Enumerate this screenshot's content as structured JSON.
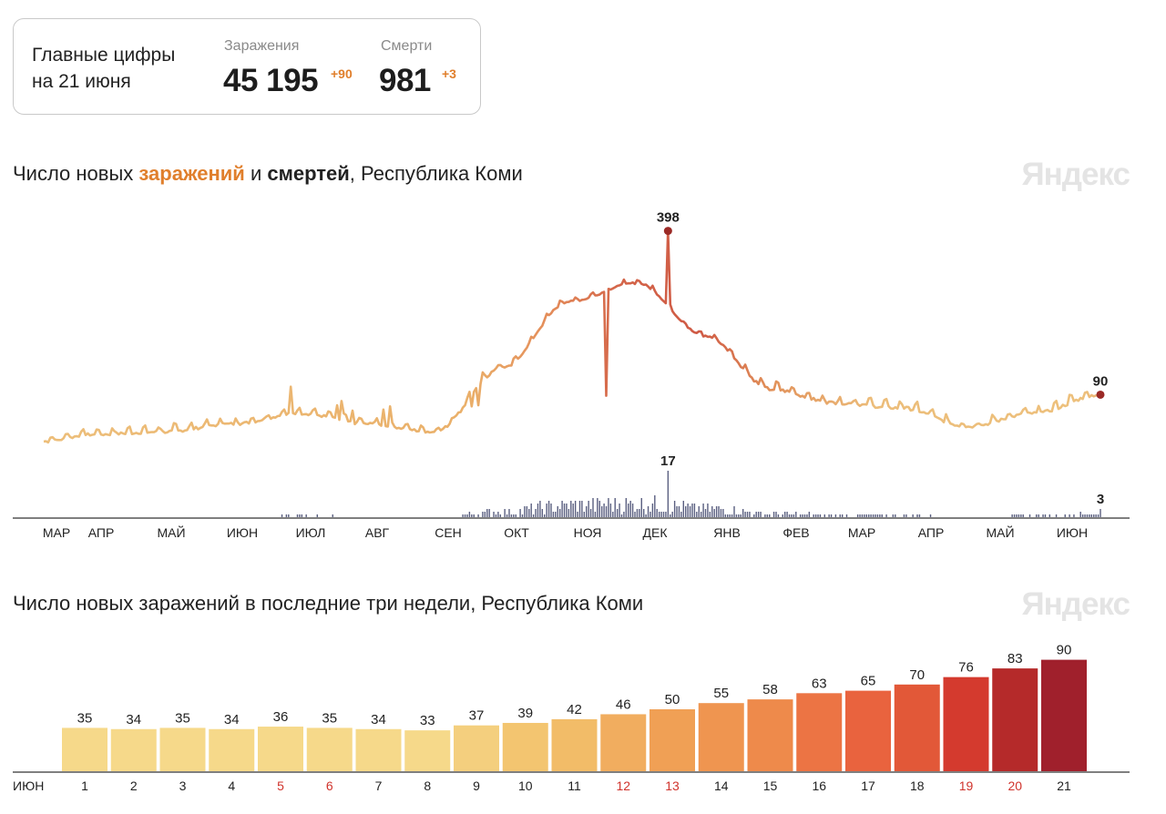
{
  "summary": {
    "title_line1": "Главные цифры",
    "title_line2": "на 21 июня",
    "infections": {
      "label": "Заражения",
      "value": "45 195",
      "delta": "+90",
      "delta_color": "#e07f2c"
    },
    "deaths": {
      "label": "Смерти",
      "value": "981",
      "delta": "+3",
      "delta_color": "#e07f2c"
    }
  },
  "chart1": {
    "title_prefix": "Число новых ",
    "title_infections": "заражений",
    "title_mid": " и ",
    "title_deaths": "смертей",
    "title_suffix": ", Республика Коми",
    "brand": "Яндекс"
  },
  "chart2": {
    "title": "Число новых заражений в последние три недели, Республика Коми",
    "brand": "Яндекс"
  },
  "chart_data": [
    {
      "type": "line",
      "title": "Число новых заражений и смертей, Республика Коми",
      "x_tick_labels": [
        "МАР",
        "АПР",
        "МАЙ",
        "ИЮН",
        "ИЮЛ",
        "АВГ",
        "СЕН",
        "ОКТ",
        "НОЯ",
        "ДЕК",
        "ЯНВ",
        "ФЕВ",
        "МАР",
        "АПР",
        "МАЙ",
        "ИЮН"
      ],
      "series": [
        {
          "kind": "line",
          "annotations": [
            {
              "label": "398",
              "value": 398,
              "x_month": "ДЕК"
            },
            {
              "label": "90",
              "value": 90,
              "x_month": "ИЮН"
            }
          ],
          "monthly_approx": [
            {
              "month": "МАР",
              "value": 2
            },
            {
              "month": "АПР",
              "value": 15
            },
            {
              "month": "МАЙ",
              "value": 20
            },
            {
              "month": "ИЮН",
              "value": 35
            },
            {
              "month": "ИЮЛ",
              "value": 55
            },
            {
              "month": "АВГ",
              "value": 35
            },
            {
              "month": "СЕН",
              "value": 20
            },
            {
              "month": "ОКТ",
              "value": 140
            },
            {
              "month": "НОЯ",
              "value": 265
            },
            {
              "month": "ДЕК",
              "value": 300
            },
            {
              "month": "ЯНВ",
              "value": 200
            },
            {
              "month": "ФЕВ",
              "value": 100
            },
            {
              "month": "МАР",
              "value": 75
            },
            {
              "month": "АПР",
              "value": 65
            },
            {
              "month": "МАЙ",
              "value": 30
            },
            {
              "month": "ИЮН",
              "value": 55
            }
          ]
        },
        {
          "kind": "bars",
          "annotations": [
            {
              "label": "17",
              "value": 17,
              "x_month": "ДЕК"
            },
            {
              "label": "3",
              "value": 3,
              "x_month": "ИЮН"
            }
          ]
        }
      ]
    },
    {
      "type": "bar",
      "title": "Число новых заражений в последние три недели, Республика Коми",
      "month_label": "ИЮН",
      "categories": [
        "1",
        "2",
        "3",
        "4",
        "5",
        "6",
        "7",
        "8",
        "9",
        "10",
        "11",
        "12",
        "13",
        "14",
        "15",
        "16",
        "17",
        "18",
        "19",
        "20",
        "21"
      ],
      "values": [
        35,
        34,
        35,
        34,
        36,
        35,
        34,
        33,
        37,
        39,
        42,
        46,
        50,
        55,
        58,
        63,
        65,
        70,
        76,
        83,
        90
      ],
      "weekend": [
        false,
        false,
        false,
        false,
        true,
        true,
        false,
        false,
        false,
        false,
        false,
        true,
        true,
        false,
        false,
        false,
        false,
        false,
        true,
        true,
        false
      ],
      "weekend_color": "#d0332c",
      "colors": [
        "#f6d98a",
        "#f6d98a",
        "#f6d98a",
        "#f6d98a",
        "#f6d98a",
        "#f6d98a",
        "#f6d98a",
        "#f6d98a",
        "#f4cf7e",
        "#f3c570",
        "#f2bc68",
        "#f1ad5f",
        "#f0a055",
        "#ef9550",
        "#ee8a4b",
        "#ec7444",
        "#e9633e",
        "#e25838",
        "#d43a2e",
        "#b52a2a",
        "#a0202c"
      ]
    }
  ]
}
